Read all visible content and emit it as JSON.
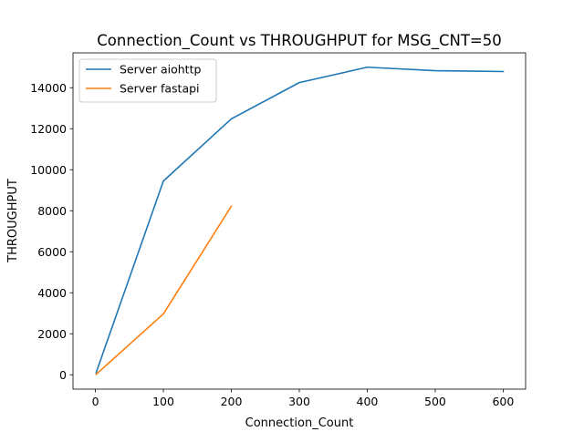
{
  "chart_data": {
    "type": "line",
    "title": "Connection_Count vs THROUGHPUT for MSG_CNT=50",
    "xlabel": "Connection_Count",
    "ylabel": "THROUGHPUT",
    "xlim": [
      -33,
      633
    ],
    "ylim": [
      -700,
      15700
    ],
    "xticks": [
      0,
      100,
      200,
      300,
      400,
      500,
      600
    ],
    "yticks": [
      0,
      2000,
      4000,
      6000,
      8000,
      10000,
      12000,
      14000
    ],
    "grid": false,
    "legend_position": "upper left",
    "series": [
      {
        "name": "Server aiohttp",
        "color": "#1f77b4",
        "x": [
          1,
          100,
          200,
          300,
          400,
          500,
          600
        ],
        "y": [
          100,
          9450,
          12480,
          14250,
          15000,
          14830,
          14790
        ]
      },
      {
        "name": "Server fastapi",
        "color": "#ff7f0e",
        "x": [
          1,
          100,
          200
        ],
        "y": [
          20,
          2970,
          8220
        ]
      }
    ]
  }
}
